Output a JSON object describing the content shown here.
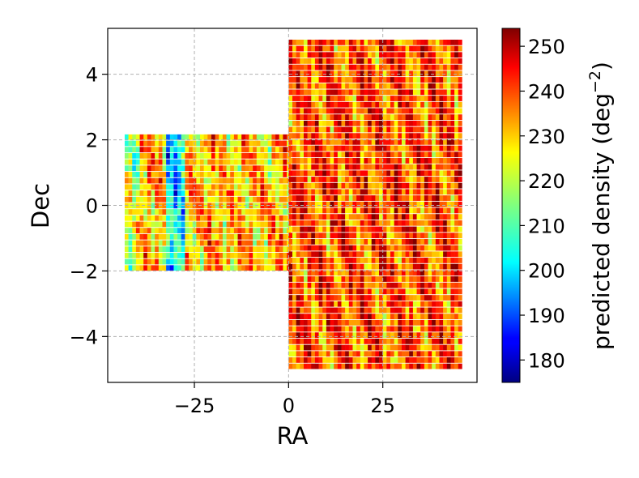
{
  "chart_data": {
    "type": "heatmap",
    "xlabel": "RA",
    "ylabel": "Dec",
    "xlim": [
      -48,
      50
    ],
    "ylim": [
      -5.4,
      5.4
    ],
    "x_ticks": [
      -25,
      0,
      25
    ],
    "x_tick_labels": [
      "−25",
      "0",
      "25"
    ],
    "y_ticks": [
      -4,
      -2,
      0,
      2,
      4
    ],
    "y_tick_labels": [
      "−4",
      "−2",
      "0",
      "2",
      "4"
    ],
    "grid": true,
    "grid_style": "dashed",
    "colormap": "jet",
    "colorbar": {
      "label": "predicted density (deg",
      "label_superscript": "−2",
      "label_close": ")",
      "range": [
        175,
        254
      ],
      "ticks": [
        180,
        190,
        200,
        210,
        220,
        230,
        240,
        250
      ],
      "tick_labels": [
        "180",
        "190",
        "200",
        "210",
        "220",
        "230",
        "240",
        "250"
      ]
    },
    "regions": [
      {
        "name": "",
        "ra_range": [
          -43.5,
          0
        ],
        "dec_range": [
          -2,
          2
        ],
        "typical_density": 230,
        "low_density_ra": [
          -33,
          -28
        ]
      },
      {
        "name": "",
        "ra_range": [
          0,
          45.5
        ],
        "dec_range": [
          -5,
          5
        ],
        "typical_density": 238
      }
    ]
  }
}
